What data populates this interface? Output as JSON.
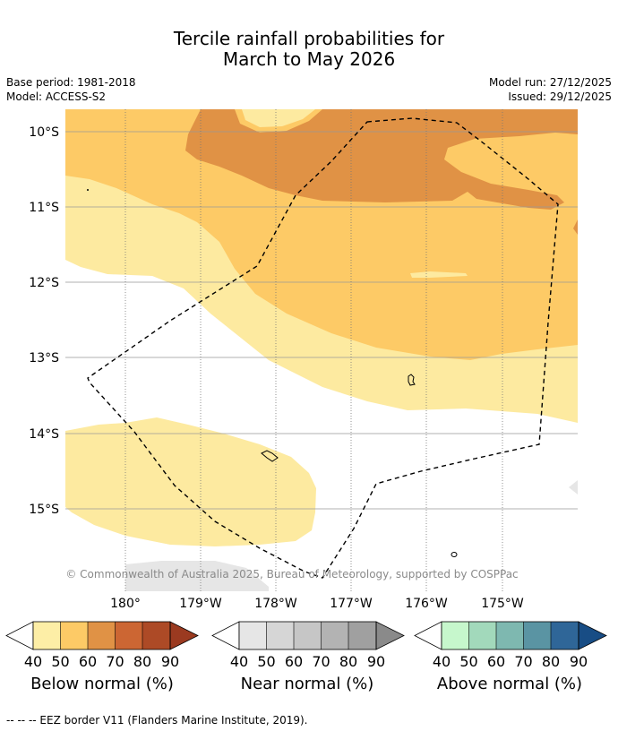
{
  "title": {
    "line1": "Tercile rainfall probabilities for",
    "line2": "March to May 2026"
  },
  "meta": {
    "base_period": "Base period: 1981-2018",
    "model": "Model: ACCESS-S2",
    "model_run": "Model run: 27/12/2025",
    "issued": "Issued: 29/12/2025"
  },
  "map": {
    "lat_labels": [
      "10°S",
      "11°S",
      "12°S",
      "13°S",
      "14°S",
      "15°S"
    ],
    "lon_labels": [
      "180°",
      "179°W",
      "178°W",
      "177°W",
      "176°W",
      "175°W"
    ],
    "attribution": "© Commonwealth of Australia 2025, Bureau of Meteorology, supported by COSPPac",
    "colors": {
      "below_40_50": "#fdeaa0",
      "below_50_60": "#fdca66",
      "below_60_70": "#e09245",
      "near_40_50": "#e6e6e6"
    }
  },
  "legends": [
    {
      "label": "Below normal (%)",
      "ticks": [
        "40",
        "50",
        "60",
        "70",
        "80",
        "90"
      ],
      "colors": [
        "#fdeea6",
        "#fdca66",
        "#e09245",
        "#cc6633",
        "#ad4a26",
        "#9b3a20"
      ]
    },
    {
      "label": "Near normal (%)",
      "ticks": [
        "40",
        "50",
        "60",
        "70",
        "80",
        "90"
      ],
      "colors": [
        "#e6e6e6",
        "#d6d6d6",
        "#c6c6c6",
        "#b3b3b3",
        "#a0a0a0",
        "#8a8a8a"
      ]
    },
    {
      "label": "Above normal (%)",
      "ticks": [
        "40",
        "50",
        "60",
        "70",
        "80",
        "90"
      ],
      "colors": [
        "#c6f7cc",
        "#a2d9bb",
        "#7eb8b0",
        "#5a94a3",
        "#2f6698",
        "#184d85"
      ]
    }
  ],
  "footnote": "--  --  -- EEZ border V11 (Flanders Marine Institute, 2019)."
}
